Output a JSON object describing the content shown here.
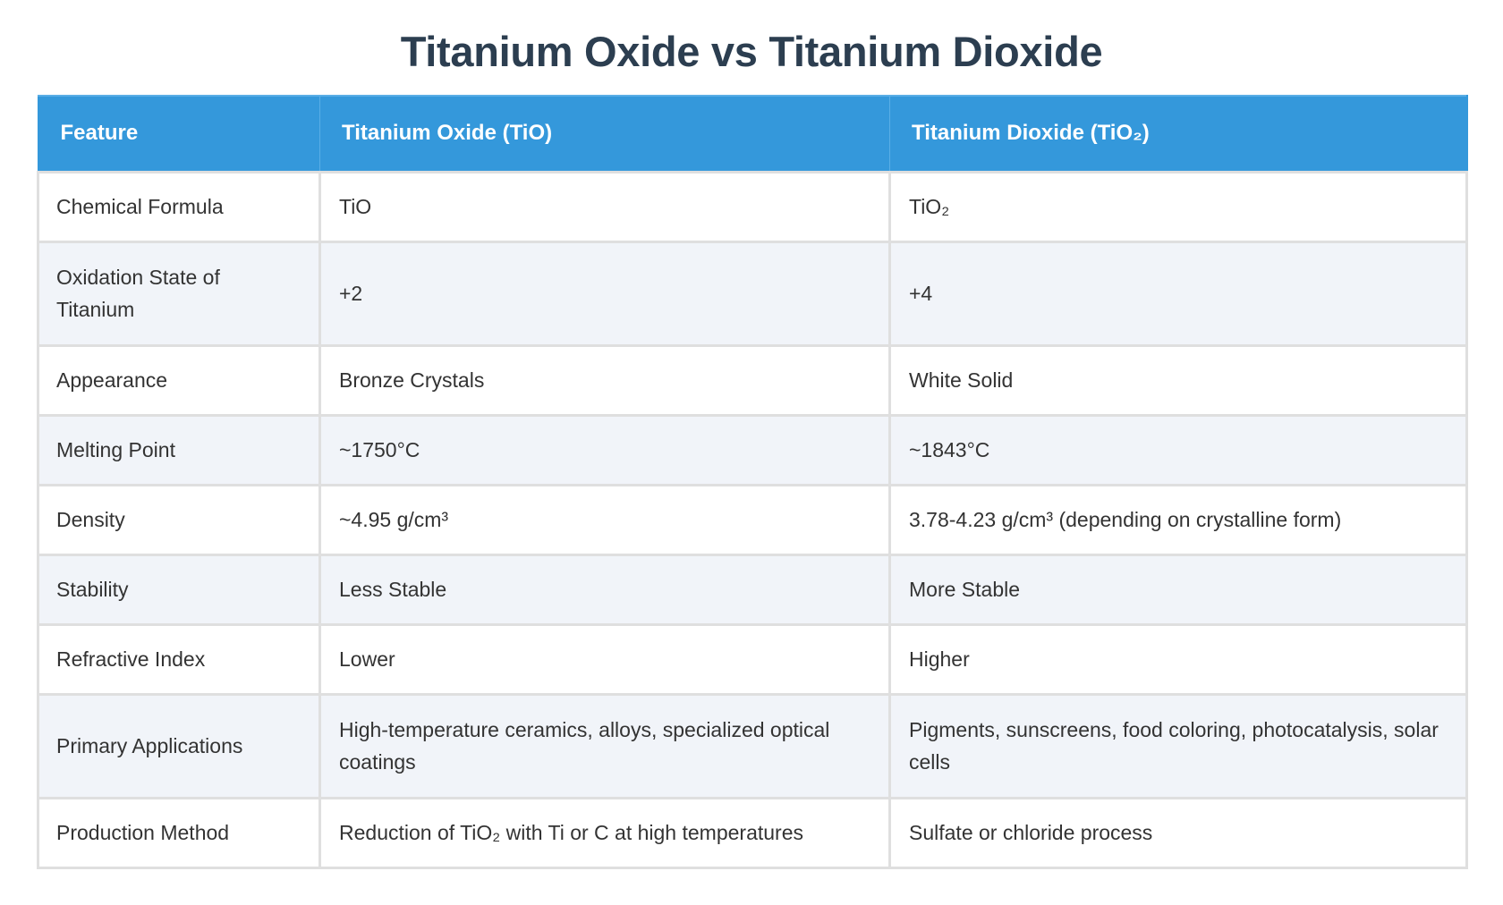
{
  "page": {
    "title": "Titanium Oxide vs Titanium Dioxide"
  },
  "table": {
    "header_bg": "#3498db",
    "header_text_color": "#ffffff",
    "title_color": "#2c3e50",
    "alt_row_bg": "#f1f4f9",
    "border_color": "#dfdfdf",
    "columns": [
      "Feature",
      "Titanium Oxide (TiO)",
      "Titanium Dioxide (TiO₂)"
    ],
    "rows": [
      {
        "feature": "Chemical Formula",
        "tio": "TiO",
        "tio2": "TiO₂"
      },
      {
        "feature": "Oxidation State of Titanium",
        "tio": "+2",
        "tio2": "+4"
      },
      {
        "feature": "Appearance",
        "tio": "Bronze Crystals",
        "tio2": "White Solid"
      },
      {
        "feature": "Melting Point",
        "tio": "~1750°C",
        "tio2": "~1843°C"
      },
      {
        "feature": "Density",
        "tio": "~4.95 g/cm³",
        "tio2": "3.78-4.23 g/cm³ (depending on crystalline form)"
      },
      {
        "feature": "Stability",
        "tio": "Less Stable",
        "tio2": "More Stable"
      },
      {
        "feature": "Refractive Index",
        "tio": "Lower",
        "tio2": "Higher"
      },
      {
        "feature": "Primary Applications",
        "tio": "High-temperature ceramics, alloys, specialized optical coatings",
        "tio2": "Pigments, sunscreens, food coloring, photocatalysis, solar cells"
      },
      {
        "feature": "Production Method",
        "tio": "Reduction of TiO₂ with Ti or C at high temperatures",
        "tio2": "Sulfate or chloride process"
      }
    ]
  }
}
